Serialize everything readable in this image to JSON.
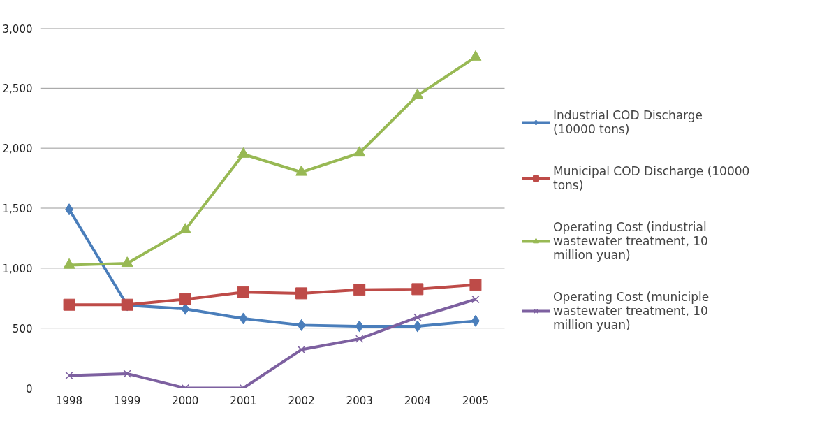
{
  "chart_data": {
    "type": "line",
    "categories": [
      "1998",
      "1999",
      "2000",
      "2001",
      "2002",
      "2003",
      "2004",
      "2005"
    ],
    "ylim": [
      0,
      3000
    ],
    "yticks": [
      {
        "value": 0,
        "label": "0"
      },
      {
        "value": 500,
        "label": "500"
      },
      {
        "value": 1000,
        "label": "1,000"
      },
      {
        "value": 1500,
        "label": "1,500"
      },
      {
        "value": 2000,
        "label": "2,000"
      },
      {
        "value": 2500,
        "label": "2,500"
      },
      {
        "value": 3000,
        "label": "3,000"
      }
    ],
    "grid": "y",
    "legend": "right",
    "line_style": "solid",
    "series": [
      {
        "name": "Industrial COD Discharge (10000 tons)",
        "color": "#4a7ebb",
        "marker": "diamond",
        "values": [
          1490,
          690,
          660,
          580,
          525,
          515,
          515,
          560
        ]
      },
      {
        "name": "Municipal COD Discharge (10000 tons)",
        "color": "#be4b48",
        "marker": "square",
        "values": [
          695,
          695,
          740,
          800,
          790,
          820,
          825,
          860
        ]
      },
      {
        "name": "Operating Cost (industrial wastewater treatment, 10 million yuan)",
        "color": "#98b954",
        "marker": "triangle",
        "values": [
          1025,
          1040,
          1320,
          1950,
          1800,
          1960,
          2440,
          2760
        ]
      },
      {
        "name": "Operating Cost (municiple wastewater treatment, 10 million yuan)",
        "color": "#7d60a0",
        "marker": "x",
        "values": [
          105,
          120,
          0,
          0,
          320,
          410,
          590,
          740
        ]
      }
    ]
  }
}
